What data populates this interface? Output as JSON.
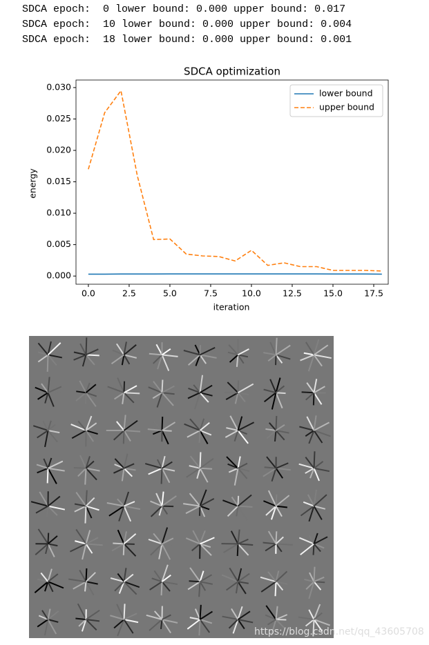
{
  "output_lines": [
    "SDCA epoch:  0 lower bound: 0.000 upper bound: 0.017",
    "SDCA epoch:  10 lower bound: 0.000 upper bound: 0.004",
    "SDCA epoch:  18 lower bound: 0.000 upper bound: 0.001"
  ],
  "chart_data": {
    "type": "line",
    "title": "SDCA optimization",
    "x_label": "iteration",
    "y_label": "energy",
    "x": [
      0,
      1,
      2,
      3,
      4,
      5,
      6,
      7,
      8,
      9,
      10,
      11,
      12,
      13,
      14,
      15,
      16,
      17,
      18
    ],
    "series": [
      {
        "name": "lower bound",
        "color": "#1f77b4",
        "style": "solid",
        "values": [
          0.0003,
          0.0003,
          0.00032,
          0.00033,
          0.00033,
          0.00034,
          0.00034,
          0.00034,
          0.00034,
          0.00034,
          0.00034,
          0.00034,
          0.00034,
          0.00034,
          0.00034,
          0.00033,
          0.00033,
          0.00033,
          0.0003
        ]
      },
      {
        "name": "upper bound",
        "color": "#ff7f0e",
        "style": "dashed",
        "values": [
          0.017,
          0.026,
          0.0295,
          0.016,
          0.0058,
          0.0059,
          0.0035,
          0.0032,
          0.0031,
          0.0024,
          0.0041,
          0.0017,
          0.0021,
          0.0015,
          0.0015,
          0.0009,
          0.0009,
          0.0009,
          0.0008
        ]
      }
    ],
    "xlim": [
      -0.76,
      18.39
    ],
    "ylim": [
      -0.0013,
      0.0312
    ],
    "xticks": [
      {
        "value": 0,
        "label": "0.0"
      },
      {
        "value": 2.5,
        "label": "2.5"
      },
      {
        "value": 5,
        "label": "5.0"
      },
      {
        "value": 7.5,
        "label": "7.5"
      },
      {
        "value": 10,
        "label": "10.0"
      },
      {
        "value": 12.5,
        "label": "12.5"
      },
      {
        "value": 15,
        "label": "15.0"
      },
      {
        "value": 17.5,
        "label": "17.5"
      }
    ],
    "yticks": [
      {
        "value": 0,
        "label": "0.000"
      },
      {
        "value": 0.005,
        "label": "0.005"
      },
      {
        "value": 0.01,
        "label": "0.010"
      },
      {
        "value": 0.015,
        "label": "0.015"
      },
      {
        "value": 0.02,
        "label": "0.020"
      },
      {
        "value": 0.025,
        "label": "0.025"
      },
      {
        "value": 0.03,
        "label": "0.030"
      }
    ],
    "legend": "upper right"
  },
  "watermark": "https://blog.csdn.net/qq_43605708"
}
